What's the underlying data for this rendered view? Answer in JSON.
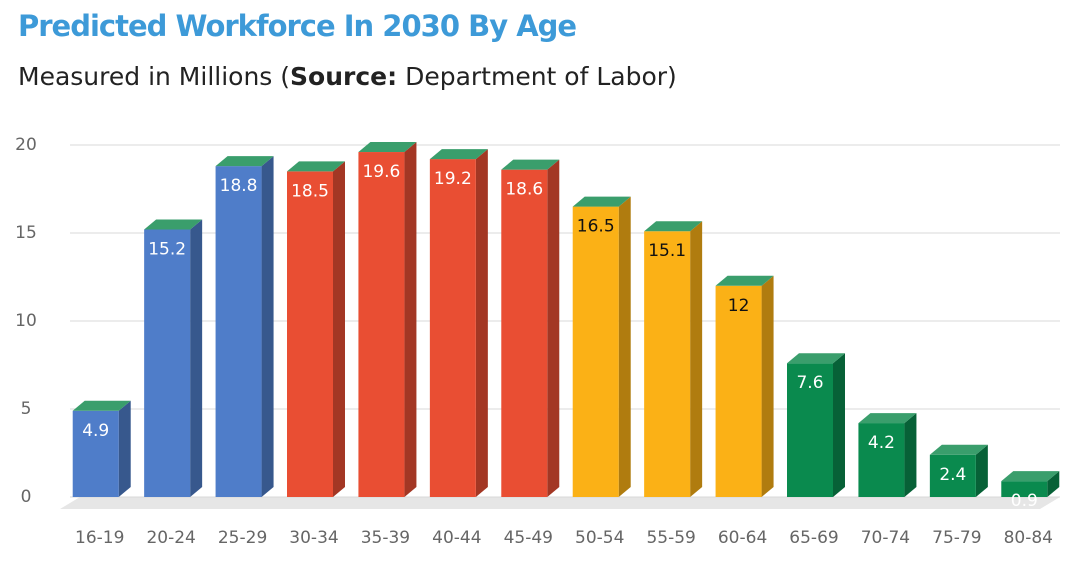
{
  "chart_data": {
    "type": "bar3d",
    "title": "Predicted Workforce In 2030 By Age",
    "subtitle": [
      "Measured in Millions (",
      "Source:",
      " Department of Labor)"
    ],
    "categories": [
      "16-19",
      "20-24",
      "25-29",
      "30-34",
      "35-39",
      "40-44",
      "45-49",
      "50-54",
      "55-59",
      "60-64",
      "65-69",
      "70-74",
      "75-79",
      "80-84"
    ],
    "values": [
      4.9,
      15.2,
      18.8,
      18.5,
      19.6,
      19.2,
      18.6,
      16.5,
      15.1,
      12,
      7.6,
      4.2,
      2.4,
      0.9
    ],
    "colors": [
      "#4f7dc9",
      "#4f7dc9",
      "#4f7dc9",
      "#e94e33",
      "#e94e33",
      "#e94e33",
      "#e94e33",
      "#fbb116",
      "#fbb116",
      "#fbb116",
      "#0a8a4e",
      "#0a8a4e",
      "#0a8a4e",
      "#0a8a4e"
    ],
    "label_colors": [
      "#ffffff",
      "#ffffff",
      "#ffffff",
      "#ffffff",
      "#ffffff",
      "#ffffff",
      "#ffffff",
      "#111111",
      "#111111",
      "#111111",
      "#ffffff",
      "#ffffff",
      "#ffffff",
      "#ffffff"
    ],
    "top_color": "#3a9e6c",
    "ylim": [
      0,
      20
    ],
    "yticks": [
      0,
      5,
      10,
      15,
      20
    ],
    "grid": true
  }
}
